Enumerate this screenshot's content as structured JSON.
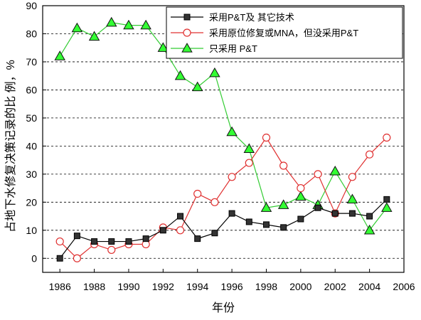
{
  "chart_data": {
    "type": "line",
    "xlabel": "年份",
    "ylabel": "占地下水修复决策记录的比 例，%",
    "xlim": [
      1985,
      2006
    ],
    "ylim": [
      -5,
      90
    ],
    "x_ticks": [
      "1986",
      "1988",
      "1990",
      "1992",
      "1994",
      "1996",
      "1998",
      "2000",
      "2002",
      "2004",
      "2006"
    ],
    "y_ticks": [
      "0",
      "10",
      "20",
      "30",
      "40",
      "50",
      "60",
      "70",
      "80",
      "90"
    ],
    "grid": "horizontal dashed",
    "legend_position": "top-right",
    "x": [
      1986,
      1987,
      1988,
      1989,
      1990,
      1991,
      1992,
      1993,
      1994,
      1995,
      1996,
      1997,
      1998,
      1999,
      2000,
      2001,
      2002,
      2003,
      2004,
      2005
    ],
    "series": [
      {
        "name": "采用P&T及 其它技术",
        "marker": "square",
        "color": "#000000",
        "fill": "#333333",
        "values": [
          0,
          8,
          6,
          6,
          6,
          7,
          10,
          15,
          7,
          9,
          16,
          13,
          12,
          11,
          14,
          18,
          16,
          16,
          15,
          21
        ]
      },
      {
        "name": "采用原位修复或MNA，但没采用P&T",
        "marker": "circle",
        "color": "#e03030",
        "fill": "#ffffff",
        "values": [
          6,
          0,
          5,
          3,
          5,
          5,
          11,
          10,
          23,
          20,
          29,
          34,
          43,
          33,
          25,
          30,
          16,
          29,
          37,
          43
        ]
      },
      {
        "name": "只采用 P&T",
        "marker": "triangle",
        "color": "#33cc33",
        "fill": "#33ff33",
        "values": [
          72,
          82,
          79,
          84,
          83,
          83,
          75,
          65,
          61,
          66,
          45,
          39,
          18,
          19,
          22,
          19,
          31,
          21,
          10,
          18
        ]
      }
    ]
  }
}
